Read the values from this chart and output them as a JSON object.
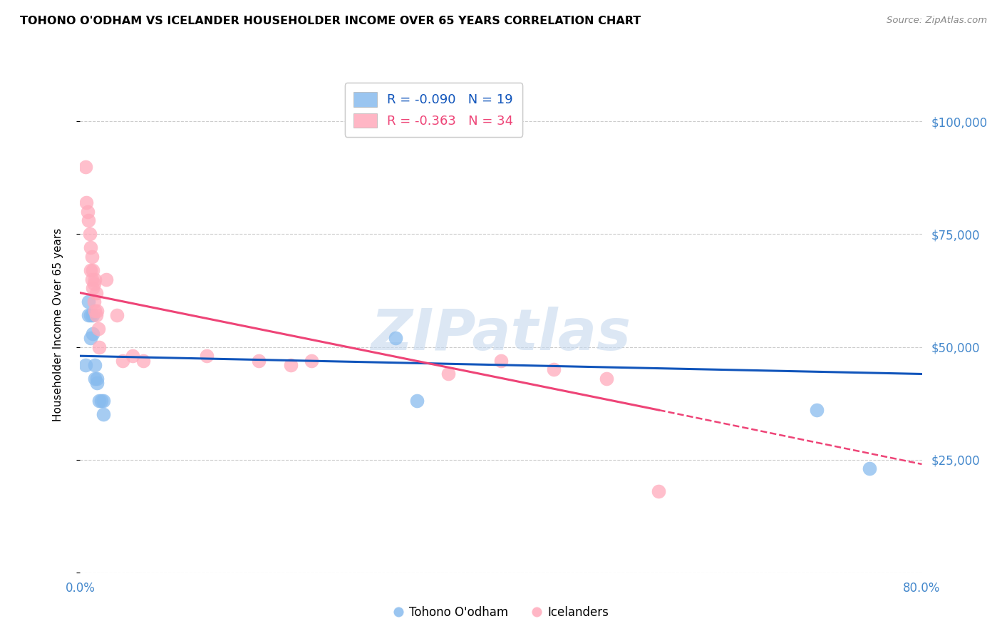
{
  "title": "TOHONO O'ODHAM VS ICELANDER HOUSEHOLDER INCOME OVER 65 YEARS CORRELATION CHART",
  "source": "Source: ZipAtlas.com",
  "ylabel": "Householder Income Over 65 years",
  "xlim": [
    0,
    0.8
  ],
  "ylim": [
    0,
    110000
  ],
  "xticks": [
    0.0,
    0.1,
    0.2,
    0.3,
    0.4,
    0.5,
    0.6,
    0.7,
    0.8
  ],
  "xticklabels": [
    "0.0%",
    "",
    "",
    "",
    "",
    "",
    "",
    "",
    "80.0%"
  ],
  "yticks": [
    0,
    25000,
    50000,
    75000,
    100000
  ],
  "yticklabels": [
    "",
    "$25,000",
    "$50,000",
    "$75,000",
    "$100,000"
  ],
  "legend_r_blue": "R = -0.090",
  "legend_n_blue": "N = 19",
  "legend_r_pink": "R = -0.363",
  "legend_n_pink": "N = 34",
  "blue_color": "#88bbee",
  "pink_color": "#ffaabb",
  "blue_line_color": "#1155bb",
  "pink_line_color": "#ee4477",
  "axis_label_color": "#4488cc",
  "watermark_color": "#c5d8ee",
  "tohono_x": [
    0.005,
    0.008,
    0.008,
    0.01,
    0.01,
    0.012,
    0.012,
    0.014,
    0.014,
    0.016,
    0.016,
    0.018,
    0.02,
    0.022,
    0.022,
    0.3,
    0.32,
    0.7,
    0.75
  ],
  "tohono_y": [
    46000,
    60000,
    57000,
    57000,
    52000,
    57000,
    53000,
    46000,
    43000,
    43000,
    42000,
    38000,
    38000,
    38000,
    35000,
    52000,
    38000,
    36000,
    23000
  ],
  "icelander_x": [
    0.005,
    0.006,
    0.007,
    0.008,
    0.009,
    0.01,
    0.01,
    0.011,
    0.011,
    0.012,
    0.012,
    0.013,
    0.013,
    0.014,
    0.014,
    0.015,
    0.015,
    0.016,
    0.017,
    0.018,
    0.025,
    0.035,
    0.04,
    0.05,
    0.06,
    0.12,
    0.17,
    0.2,
    0.22,
    0.35,
    0.4,
    0.45,
    0.5,
    0.55
  ],
  "icelander_y": [
    90000,
    82000,
    80000,
    78000,
    75000,
    72000,
    67000,
    70000,
    65000,
    67000,
    63000,
    64000,
    60000,
    65000,
    58000,
    62000,
    57000,
    58000,
    54000,
    50000,
    65000,
    57000,
    47000,
    48000,
    47000,
    48000,
    47000,
    46000,
    47000,
    44000,
    47000,
    45000,
    43000,
    18000
  ],
  "blue_line_x0": 0.0,
  "blue_line_y0": 48000,
  "blue_line_x1": 0.8,
  "blue_line_y1": 44000,
  "pink_line_solid_x0": 0.0,
  "pink_line_solid_y0": 62000,
  "pink_line_solid_x1": 0.55,
  "pink_line_solid_y1": 36000,
  "pink_line_dash_x0": 0.55,
  "pink_line_dash_y0": 36000,
  "pink_line_dash_x1": 0.8,
  "pink_line_dash_y1": 24000
}
